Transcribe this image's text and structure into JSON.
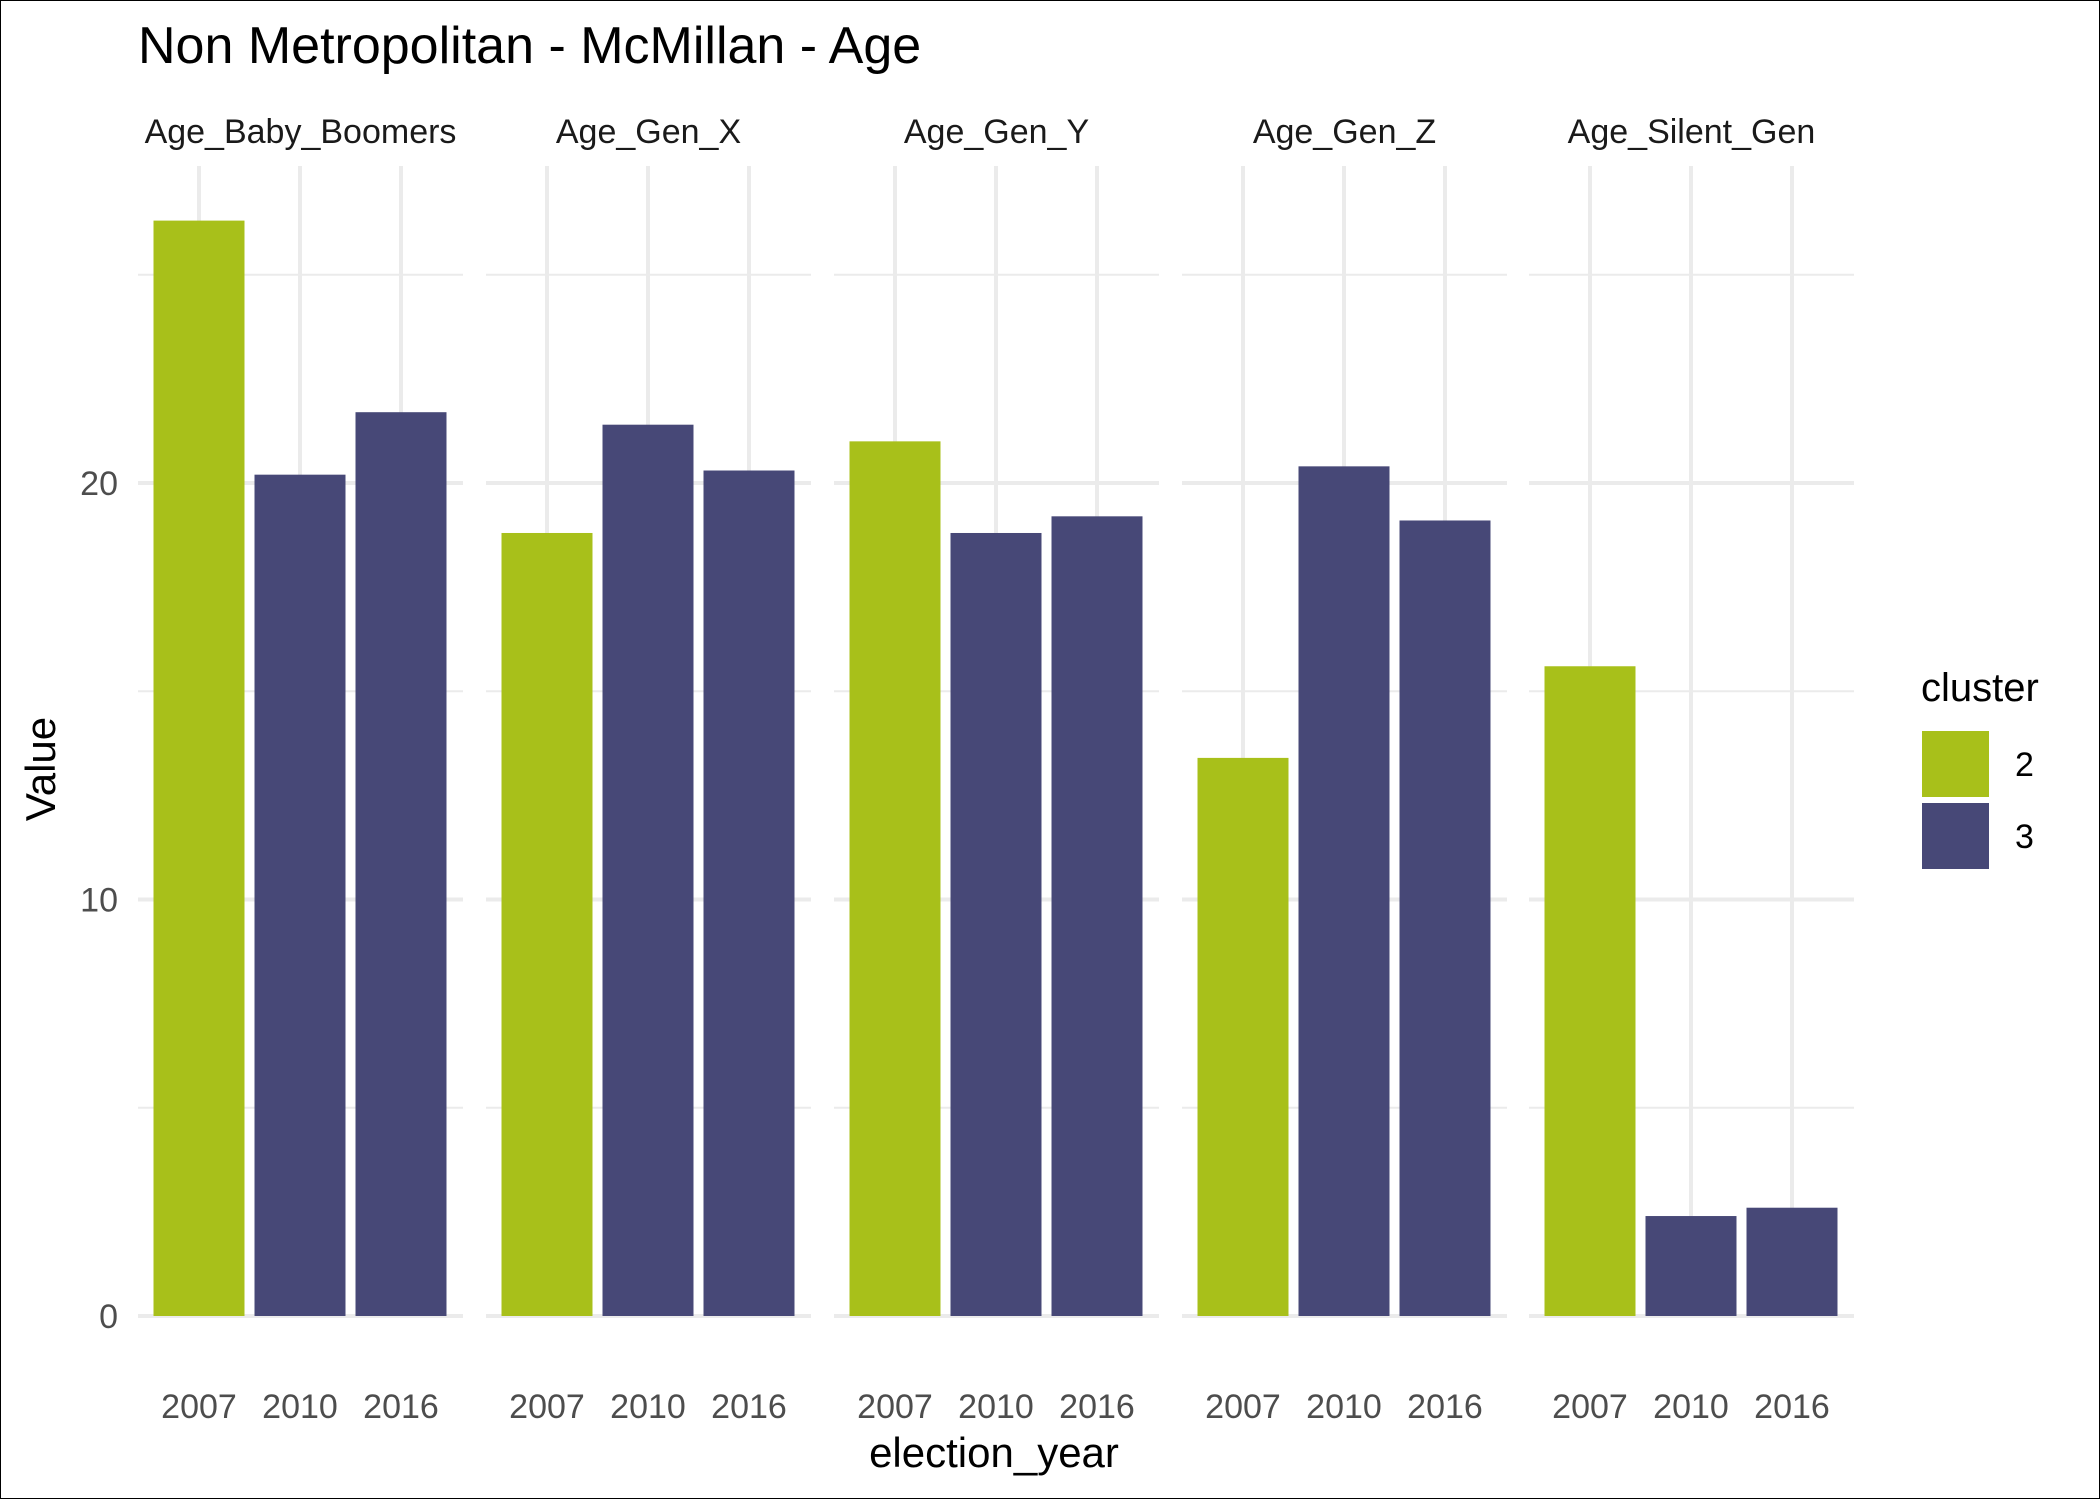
{
  "chart_data": {
    "type": "bar",
    "title": "Non Metropolitan - McMillan - Age",
    "xlabel": "election_year",
    "ylabel": "Value",
    "ylim": [
      0,
      27.6
    ],
    "yticks": [
      0,
      10,
      20
    ],
    "grid": true,
    "legend": {
      "title": "cluster",
      "placement": "right",
      "entries": [
        {
          "label": "2",
          "color": "#a8c01a"
        },
        {
          "label": "3",
          "color": "#474877"
        }
      ]
    },
    "categories": [
      "2007",
      "2010",
      "2016"
    ],
    "facets": [
      {
        "name": "Age_Baby_Boomers",
        "values": [
          26.3,
          20.2,
          21.7
        ],
        "clusters": [
          "2",
          "3",
          "3"
        ]
      },
      {
        "name": "Age_Gen_X",
        "values": [
          18.8,
          21.4,
          20.3
        ],
        "clusters": [
          "2",
          "3",
          "3"
        ]
      },
      {
        "name": "Age_Gen_Y",
        "values": [
          21.0,
          18.8,
          19.2
        ],
        "clusters": [
          "2",
          "3",
          "3"
        ]
      },
      {
        "name": "Age_Gen_Z",
        "values": [
          13.4,
          20.4,
          19.1
        ],
        "clusters": [
          "2",
          "3",
          "3"
        ]
      },
      {
        "name": "Age_Silent_Gen",
        "values": [
          15.6,
          2.4,
          2.6
        ],
        "clusters": [
          "2",
          "3",
          "3"
        ]
      }
    ]
  }
}
